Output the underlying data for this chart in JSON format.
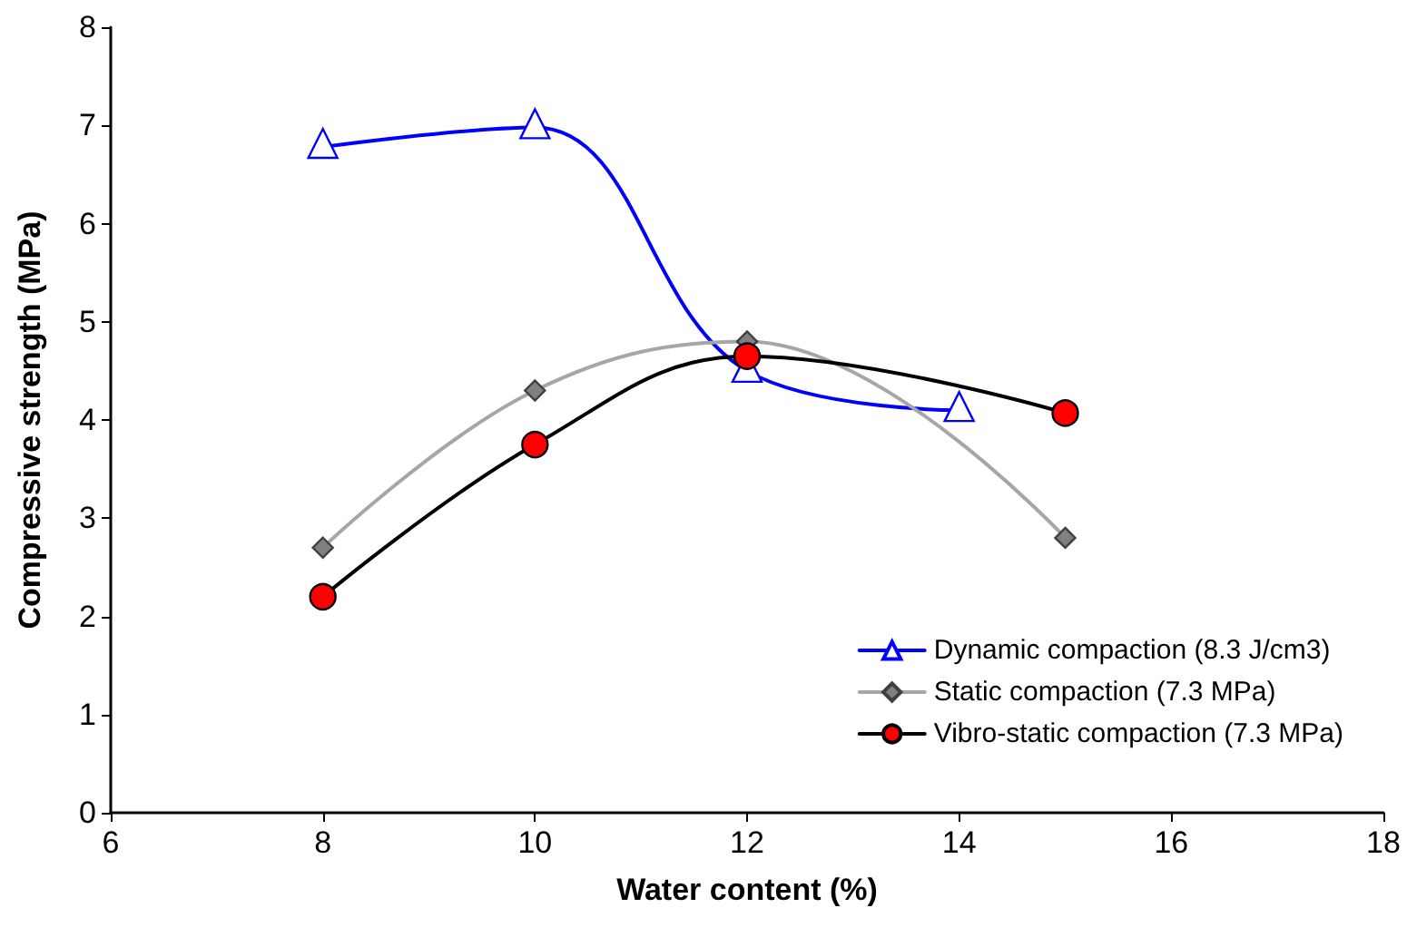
{
  "chart_data": {
    "type": "line",
    "xlabel": "Water content (%)",
    "ylabel": "Compressive strength (MPa)",
    "xlim": [
      6,
      18
    ],
    "xticks": [
      6,
      8,
      10,
      12,
      14,
      16,
      18
    ],
    "ylim": [
      0,
      8
    ],
    "yticks": [
      0,
      1,
      2,
      3,
      4,
      5,
      6,
      7,
      8
    ],
    "grid": false,
    "legend": "bottom right",
    "series": [
      {
        "name": "Dynamic compaction (8.3 J/cm3)",
        "color": "#0000ff",
        "marker": "triangle",
        "x": [
          8,
          10,
          12,
          14
        ],
        "values": [
          6.78,
          6.98,
          4.5,
          4.1
        ]
      },
      {
        "name": "Static compaction (7.3 MPa)",
        "color": "#a6a6a6",
        "marker": "diamond",
        "x": [
          8,
          10,
          12,
          15
        ],
        "values": [
          2.7,
          4.3,
          4.8,
          2.8
        ]
      },
      {
        "name": "Vibro-static compaction (7.3 MPa)",
        "color": "#000000",
        "marker": "circle",
        "x": [
          8,
          10,
          12,
          15
        ],
        "values": [
          2.2,
          3.75,
          4.65,
          4.07
        ]
      }
    ]
  }
}
